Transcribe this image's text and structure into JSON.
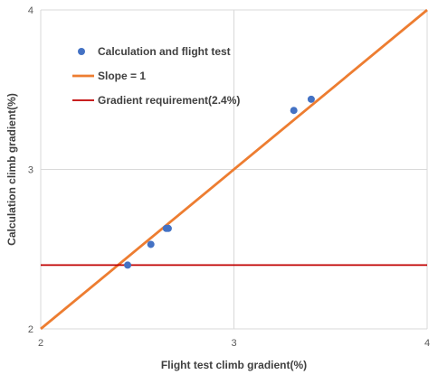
{
  "chart_data": {
    "type": "scatter",
    "xlabel": "Flight test climb gradient(%)",
    "ylabel": "Calculation climb gradient(%)",
    "xlim": [
      2,
      4
    ],
    "ylim": [
      2,
      4
    ],
    "x_ticks": [
      "2",
      "3",
      "4"
    ],
    "y_ticks": [
      "2",
      "3",
      "4"
    ],
    "grid": true,
    "legend_position": "top-left",
    "series": [
      {
        "name": "Calculation and flight test",
        "kind": "scatter",
        "color": "#4472C4",
        "points": [
          {
            "x": 2.45,
            "y": 2.4
          },
          {
            "x": 2.57,
            "y": 2.53
          },
          {
            "x": 2.65,
            "y": 2.63
          },
          {
            "x": 2.66,
            "y": 2.63
          },
          {
            "x": 3.31,
            "y": 3.37
          },
          {
            "x": 3.4,
            "y": 3.44
          }
        ]
      },
      {
        "name": "Slope = 1",
        "kind": "line",
        "color": "#ED7D31",
        "points": [
          {
            "x": 2,
            "y": 2
          },
          {
            "x": 4,
            "y": 4
          }
        ]
      },
      {
        "name": "Gradient requirement(2.4%)",
        "kind": "hline",
        "color": "#C00000",
        "y": 2.4
      }
    ]
  }
}
